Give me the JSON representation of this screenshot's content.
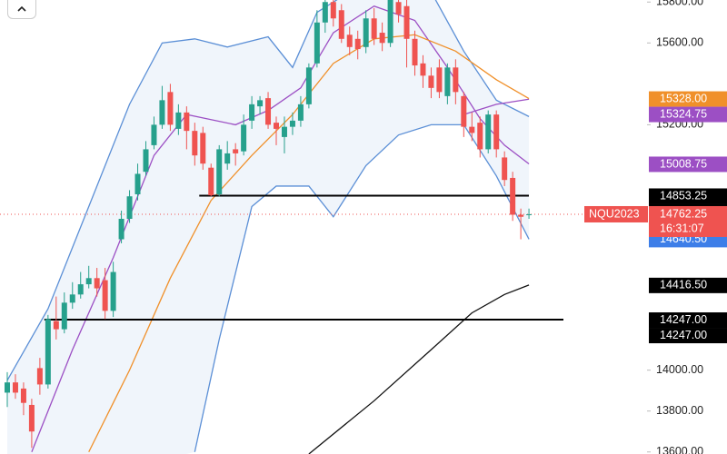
{
  "chart_data": {
    "type": "candlestick",
    "ylim": [
      13590,
      15810
    ],
    "yticks": [
      {
        "value": 15800,
        "label": "15800.00"
      },
      {
        "value": 15600,
        "label": "15600.00"
      },
      {
        "value": 15200,
        "label": "15200.00"
      },
      {
        "value": 14000,
        "label": "14000.00"
      },
      {
        "value": 13800,
        "label": "13800.00"
      },
      {
        "value": 13600,
        "label": "13600.00"
      }
    ],
    "up_color": "#26a08c",
    "down_color": "#ef5350",
    "open": [
      13890,
      13940,
      13910,
      13830,
      14010,
      13930,
      14240,
      14200,
      14330,
      14370,
      14420,
      14450,
      14440,
      14290,
      14640,
      14740,
      14860,
      14970,
      15100,
      15200,
      15360,
      15180,
      15260,
      15170,
      15160,
      14990,
      14860,
      15010,
      15080,
      15070,
      15220,
      15290,
      15330,
      15210,
      15140,
      15190,
      15220,
      15300,
      15500,
      15700,
      15800,
      15760,
      15640,
      15620,
      15580,
      15720,
      15650,
      15600,
      15800,
      15780,
      15620,
      15500,
      15440,
      15480,
      15340,
      15480,
      15340,
      15190,
      15210,
      15080,
      15250,
      15040,
      14940,
      14760,
      14760
    ],
    "close": [
      13940,
      13890,
      13840,
      13700,
      13930,
      14250,
      14200,
      14330,
      14370,
      14420,
      14450,
      14400,
      14290,
      14480,
      14740,
      14850,
      14960,
      15080,
      15200,
      15320,
      15200,
      15260,
      15170,
      15050,
      15010,
      14855,
      15080,
      15060,
      15060,
      15200,
      15300,
      15320,
      15200,
      15180,
      15190,
      15220,
      15300,
      15480,
      15700,
      15800,
      15720,
      15620,
      15580,
      15570,
      15720,
      15620,
      15600,
      15810,
      15740,
      15620,
      15490,
      15440,
      15380,
      15360,
      15480,
      15360,
      15190,
      15160,
      15080,
      15250,
      15080,
      14930,
      14760,
      14750,
      14762.25
    ],
    "high": [
      13990,
      13980,
      13940,
      13860,
      14060,
      14270,
      14360,
      14380,
      14430,
      14480,
      14510,
      14500,
      14500,
      14530,
      14780,
      14880,
      15010,
      15120,
      15240,
      15390,
      15400,
      15300,
      15290,
      15210,
      15190,
      15010,
      15100,
      15120,
      15110,
      15250,
      15340,
      15340,
      15360,
      15240,
      15240,
      15260,
      15340,
      15500,
      15760,
      15820,
      15810,
      15790,
      15680,
      15660,
      15760,
      15770,
      15700,
      15830,
      15840,
      15810,
      15660,
      15540,
      15480,
      15520,
      15500,
      15520,
      15360,
      15260,
      15240,
      15270,
      15270,
      15070,
      14970,
      14790,
      14790
    ],
    "low": [
      13820,
      13860,
      13780,
      13620,
      13880,
      13910,
      14150,
      14180,
      14300,
      14350,
      14400,
      14360,
      14250,
      14260,
      14620,
      14720,
      14830,
      14950,
      15080,
      15180,
      15170,
      15150,
      15080,
      15000,
      14980,
      14850,
      14850,
      14980,
      15000,
      15050,
      15180,
      15250,
      15180,
      15100,
      15060,
      15150,
      15190,
      15280,
      15480,
      15650,
      15680,
      15600,
      15540,
      15520,
      15550,
      15590,
      15560,
      15580,
      15700,
      15480,
      15440,
      15380,
      15330,
      15330,
      15300,
      15300,
      15140,
      15120,
      15040,
      15060,
      15040,
      14900,
      14730,
      14640,
      14740
    ],
    "overlays": [
      {
        "color": "#5b8fd6",
        "x": [
          0,
          5,
          10,
          15,
          19,
          23,
          27,
          32,
          35,
          38,
          42,
          52,
          56,
          60,
          64
        ],
        "values": [
          13950,
          14300,
          14800,
          15300,
          15600,
          15620,
          15580,
          15630,
          15480,
          15750,
          15850,
          15850,
          15560,
          15320,
          15240
        ]
      },
      {
        "color": "#5b8fd6",
        "x": [
          23,
          26,
          30,
          33,
          37,
          40,
          44,
          48,
          52,
          56,
          60,
          64
        ],
        "values": [
          13600,
          14150,
          14800,
          14900,
          14900,
          14750,
          15000,
          15150,
          15200,
          15200,
          14950,
          14640.5
        ]
      },
      {
        "color": "#9c4fc4",
        "x": [
          3,
          8,
          13,
          18,
          22,
          28,
          32,
          36,
          40,
          45,
          50,
          54,
          58,
          61,
          64
        ],
        "values": [
          13600,
          14100,
          14550,
          15050,
          15250,
          15200,
          15270,
          15380,
          15650,
          15780,
          15710,
          15480,
          15230,
          15100,
          15008.75
        ]
      },
      {
        "color": "#9c4fc4",
        "x": [
          56,
          60,
          64
        ],
        "values": [
          15250,
          15300,
          15324.75
        ]
      },
      {
        "color": "#f0902a",
        "x": [
          10,
          15,
          20,
          25,
          30,
          35,
          40,
          45,
          50,
          55,
          60,
          64
        ],
        "values": [
          13600,
          14000,
          14450,
          14830,
          15050,
          15250,
          15500,
          15620,
          15640,
          15560,
          15420,
          15328
        ]
      },
      {
        "color": "#111111",
        "x": [
          37,
          45,
          52,
          57,
          61,
          64
        ],
        "values": [
          13590,
          13850,
          14100,
          14280,
          14370,
          14416.5
        ]
      }
    ],
    "levels": [
      {
        "value": 14853.25,
        "from": 24
      },
      {
        "value": 14247,
        "from": 5
      }
    ],
    "symbol": "NQU2023",
    "countdown": "16:31:07",
    "last_price": {
      "value": 14762.25,
      "label": "14762.25"
    },
    "price_labels": [
      {
        "value": 15328,
        "label": "15328.00",
        "color": "#f0902a"
      },
      {
        "value": 15324.75,
        "label": "15324.75",
        "color": "#9c4fc4"
      },
      {
        "value": 15008.75,
        "label": "15008.75",
        "color": "#9c4fc4"
      },
      {
        "value": 14853.25,
        "label": "14853.25",
        "color": "#000000"
      },
      {
        "value": 14853.25,
        "label": "14853.25",
        "color": "#000000"
      },
      {
        "value": 14640.5,
        "label": "14640.50",
        "color": "#3d7ee8"
      },
      {
        "value": 14416.5,
        "label": "14416.50",
        "color": "#000000"
      },
      {
        "value": 14247,
        "label": "14247.00",
        "color": "#000000"
      },
      {
        "value": 14247,
        "label": "14247.00",
        "color": "#000000"
      }
    ]
  }
}
